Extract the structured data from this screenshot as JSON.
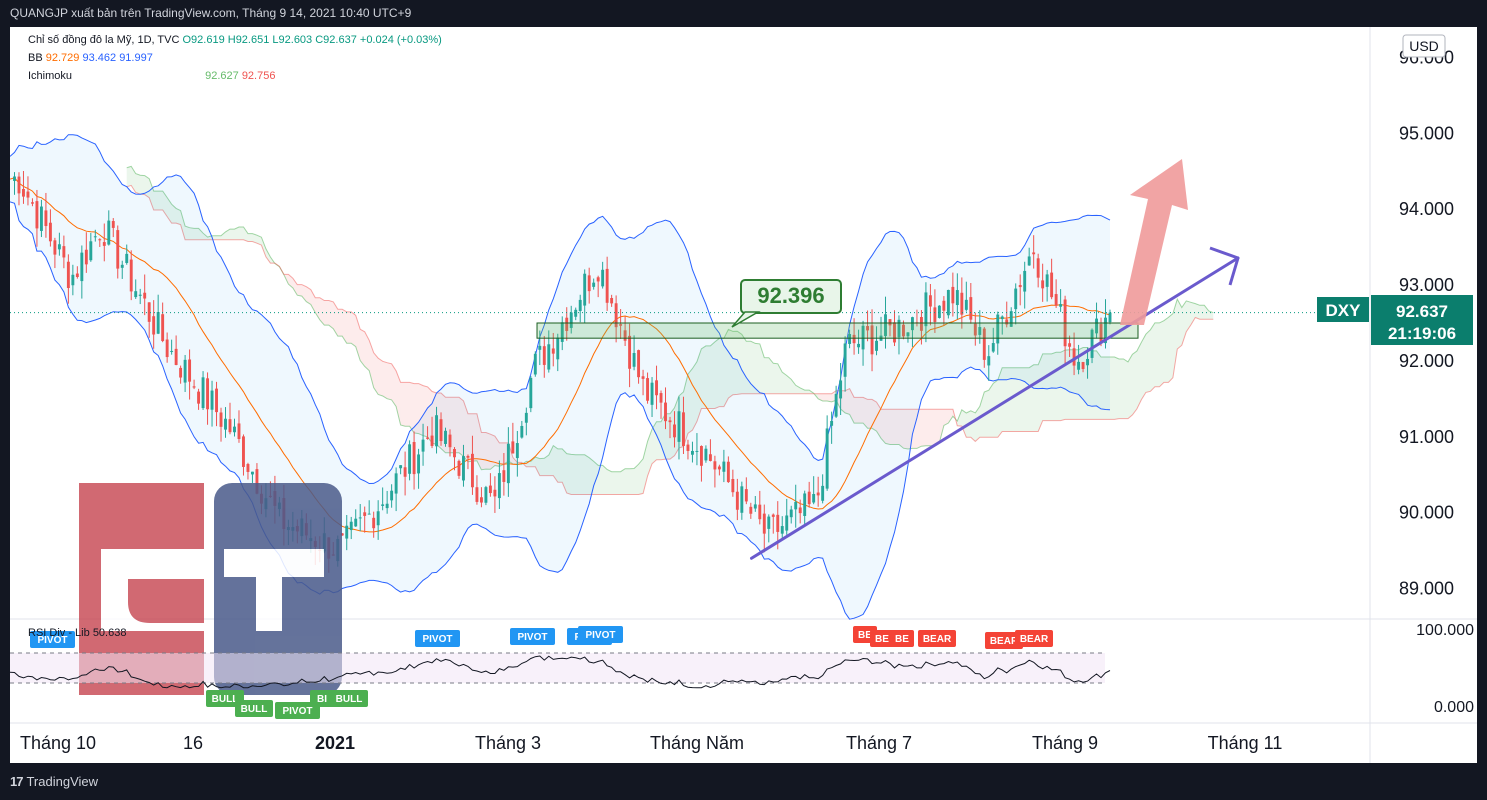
{
  "header": {
    "publisher_line": "QUANGJP xuất bản trên TradingView.com, Tháng 9 14, 2021 10:40 UTC+9"
  },
  "footer": {
    "brand": "TradingView"
  },
  "legend": {
    "symbol_line": "Chỉ số đồng đô la Mỹ, 1D, TVC",
    "o": "O92.619",
    "h": "H92.651",
    "l": "L92.603",
    "c": "C92.637",
    "chg": "+0.024 (+0.03%)",
    "bb_label": "BB",
    "bb_basis": "92.729",
    "bb_upper": "93.462",
    "bb_lower": "91.997",
    "ichimoku_label": "Ichimoku",
    "ichi_a": "92.627",
    "ichi_b": "92.756",
    "rsi_label": "RSI Div - Lib",
    "rsi_value": "50.638"
  },
  "price_axis": {
    "currency": "USD",
    "ticks": [
      "96.000",
      "95.000",
      "94.000",
      "93.000",
      "92.000",
      "91.000",
      "90.000",
      "89.000"
    ]
  },
  "rsi_axis": {
    "ticks": [
      "100.000",
      "0.000"
    ]
  },
  "time_axis": {
    "labels": [
      "Tháng 10",
      "16",
      "2021",
      "Tháng 3",
      "Tháng Năm",
      "Tháng 7",
      "Tháng 9",
      "Tháng 11"
    ]
  },
  "badges": {
    "symbol": "DXY",
    "price": "92.637",
    "countdown": "21:19:06"
  },
  "annotation": {
    "level_label": "92.396"
  },
  "colors": {
    "bull": "#26a69a",
    "bear": "#ef5350",
    "bb": "#2962ff",
    "basis": "#ff6d00",
    "trend": "#7e57c2",
    "arrow": "#ef9a9a"
  },
  "chart_data": {
    "type": "candlestick",
    "symbol": "DXY",
    "interval": "1D",
    "ylim": [
      88.6,
      96.4
    ],
    "current_price": 92.637,
    "support_zone": [
      92.3,
      92.5
    ],
    "trendline": [
      [
        "2021-05-20",
        89.4
      ],
      [
        "2021-09-14",
        92.4
      ]
    ],
    "closes_approx": [
      {
        "x": "2020-09-23",
        "y": 94.4
      },
      {
        "x": "2020-10-10",
        "y": 93.1
      },
      {
        "x": "2020-10-20",
        "y": 93.8
      },
      {
        "x": "2020-11-10",
        "y": 92.2
      },
      {
        "x": "2020-12-01",
        "y": 91.1
      },
      {
        "x": "2020-12-17",
        "y": 89.9
      },
      {
        "x": "2021-01-06",
        "y": 89.5
      },
      {
        "x": "2021-01-20",
        "y": 90.2
      },
      {
        "x": "2021-02-05",
        "y": 91.1
      },
      {
        "x": "2021-02-25",
        "y": 90.1
      },
      {
        "x": "2021-03-10",
        "y": 91.9
      },
      {
        "x": "2021-03-31",
        "y": 93.3
      },
      {
        "x": "2021-04-15",
        "y": 91.6
      },
      {
        "x": "2021-05-05",
        "y": 90.8
      },
      {
        "x": "2021-05-25",
        "y": 89.7
      },
      {
        "x": "2021-06-10",
        "y": 90.1
      },
      {
        "x": "2021-06-20",
        "y": 92.2
      },
      {
        "x": "2021-07-05",
        "y": 92.4
      },
      {
        "x": "2021-07-25",
        "y": 92.9
      },
      {
        "x": "2021-08-05",
        "y": 92.1
      },
      {
        "x": "2021-08-20",
        "y": 93.5
      },
      {
        "x": "2021-09-03",
        "y": 92.0
      },
      {
        "x": "2021-09-14",
        "y": 92.637
      }
    ],
    "rsi": {
      "value": 50.638,
      "ylim": [
        0,
        100
      ],
      "bands": [
        30,
        70
      ]
    },
    "rsi_signals": [
      {
        "label": "PIVOT",
        "kind": "bear"
      },
      {
        "label": "BULL",
        "kind": "bull"
      },
      {
        "label": "BULL",
        "kind": "bull"
      },
      {
        "label": "PIVOT",
        "kind": "bull"
      },
      {
        "label": "BI",
        "kind": "bull"
      },
      {
        "label": "BULL",
        "kind": "bull"
      },
      {
        "label": "PIVOT",
        "kind": "bear"
      },
      {
        "label": "PIVOT",
        "kind": "bear"
      },
      {
        "label": "PIVOT",
        "kind": "bear"
      },
      {
        "label": "PIVOT",
        "kind": "bear"
      },
      {
        "label": "BE",
        "kind": "red"
      },
      {
        "label": "BE",
        "kind": "red"
      },
      {
        "label": "BE",
        "kind": "red"
      },
      {
        "label": "BEAR",
        "kind": "red"
      },
      {
        "label": "BEAR",
        "kind": "red"
      },
      {
        "label": "BEAR",
        "kind": "red"
      }
    ]
  }
}
